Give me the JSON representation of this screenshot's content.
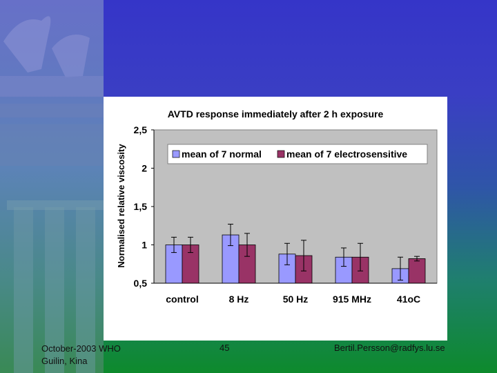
{
  "slide": {
    "footer_left_line1": "October-2003 WHO",
    "footer_left_line2": "Guilin, Kina",
    "footer_center": "45",
    "footer_right": "Bertil.Persson@radfys.lu.se"
  },
  "colors": {
    "normal": "#9999ff",
    "electrosensitive": "#993366",
    "plot_bg": "#c0c0c0"
  },
  "chart_data": {
    "type": "bar",
    "title": "AVTD response immediately after 2 h exposure",
    "xlabel": "",
    "ylabel": "Normalised relative viscosity",
    "ylim": [
      0.5,
      2.5
    ],
    "yticks": [
      "0,5",
      "1",
      "1,5",
      "2",
      "2,5"
    ],
    "ytick_values": [
      0.5,
      1,
      1.5,
      2,
      2.5
    ],
    "categories": [
      "control",
      "8 Hz",
      "50 Hz",
      "915 MHz",
      "41oC"
    ],
    "legend_position": "top",
    "series": [
      {
        "name": "mean of 7 normal",
        "values": [
          1.0,
          1.13,
          0.88,
          0.84,
          0.69
        ],
        "errors": [
          0.1,
          0.14,
          0.14,
          0.12,
          0.15
        ]
      },
      {
        "name": "mean of 7 electrosensitive",
        "values": [
          1.0,
          1.0,
          0.86,
          0.84,
          0.82
        ],
        "errors": [
          0.1,
          0.15,
          0.2,
          0.18,
          0.03
        ]
      }
    ]
  }
}
